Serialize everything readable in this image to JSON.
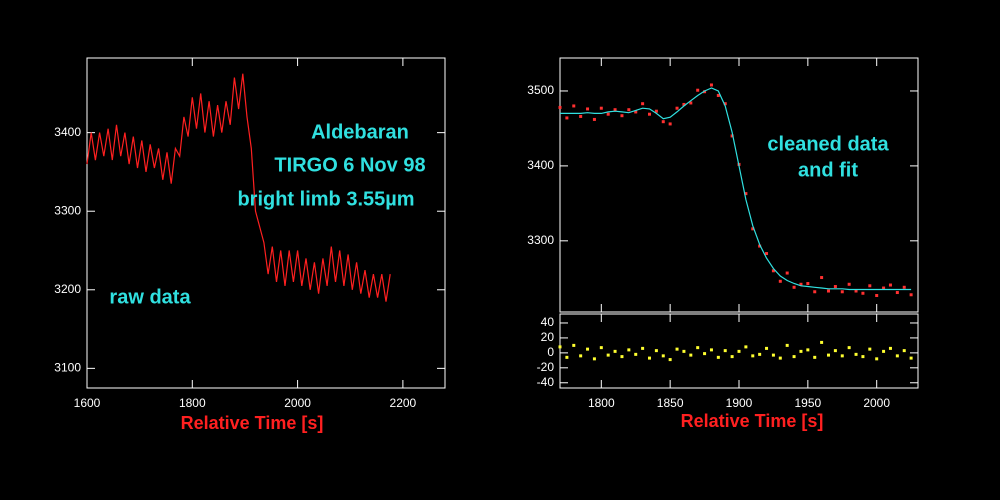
{
  "chart_data": [
    {
      "type": "line",
      "x": [
        1600,
        1608,
        1616,
        1624,
        1632,
        1640,
        1648,
        1656,
        1664,
        1672,
        1680,
        1688,
        1696,
        1704,
        1712,
        1720,
        1728,
        1736,
        1744,
        1752,
        1760,
        1768,
        1776,
        1784,
        1792,
        1800,
        1808,
        1816,
        1824,
        1832,
        1840,
        1848,
        1856,
        1864,
        1872,
        1880,
        1888,
        1896,
        1904,
        1912,
        1920,
        1928,
        1936,
        1944,
        1952,
        1960,
        1968,
        1976,
        1984,
        1992,
        2000,
        2008,
        2016,
        2024,
        2032,
        2040,
        2048,
        2056,
        2064,
        2072,
        2080,
        2088,
        2096,
        2104,
        2112,
        2120,
        2128,
        2136,
        2144,
        2152,
        2160,
        2168,
        2176
      ],
      "values": [
        3360,
        3400,
        3365,
        3400,
        3370,
        3405,
        3365,
        3410,
        3370,
        3400,
        3360,
        3395,
        3355,
        3390,
        3350,
        3385,
        3355,
        3380,
        3340,
        3375,
        3335,
        3380,
        3370,
        3420,
        3395,
        3445,
        3405,
        3450,
        3400,
        3440,
        3395,
        3435,
        3400,
        3440,
        3410,
        3470,
        3430,
        3475,
        3420,
        3380,
        3300,
        3280,
        3260,
        3220,
        3255,
        3210,
        3250,
        3205,
        3250,
        3210,
        3250,
        3205,
        3240,
        3200,
        3235,
        3195,
        3240,
        3205,
        3255,
        3210,
        3250,
        3205,
        3245,
        3200,
        3235,
        3195,
        3225,
        3190,
        3220,
        3190,
        3220,
        3185,
        3220
      ],
      "color": "#ff2020",
      "x_label": "Relative Time [s]",
      "annotations": [
        "Aldebaran",
        "TIRGO 6 Nov 98",
        "bright limb 3.55µm",
        "raw data"
      ],
      "xlim": [
        1600,
        2280
      ],
      "xticks": [
        1600,
        1800,
        2000,
        2200
      ],
      "ylim": [
        3075,
        3495
      ],
      "yticks": [
        3100,
        3200,
        3300,
        3400
      ]
    },
    {
      "type": "scatter",
      "x": [
        1770,
        1775,
        1780,
        1785,
        1790,
        1795,
        1800,
        1805,
        1810,
        1815,
        1820,
        1825,
        1830,
        1835,
        1840,
        1845,
        1850,
        1855,
        1860,
        1865,
        1870,
        1875,
        1880,
        1885,
        1890,
        1895,
        1900,
        1905,
        1910,
        1915,
        1920,
        1925,
        1930,
        1935,
        1940,
        1945,
        1950,
        1955,
        1960,
        1965,
        1970,
        1975,
        1980,
        1985,
        1990,
        1995,
        2000,
        2005,
        2010,
        2015,
        2020,
        2025
      ],
      "series": [
        {
          "color": "#ff3030",
          "values": [
            3478,
            3464,
            3480,
            3466,
            3476,
            3462,
            3477,
            3469,
            3475,
            3467,
            3475,
            3472,
            3483,
            3469,
            3473,
            3459,
            3456,
            3477,
            3482,
            3484,
            3501,
            3499,
            3508,
            3494,
            3483,
            3440,
            3402,
            3363,
            3316,
            3293,
            3283,
            3260,
            3246,
            3257,
            3238,
            3242,
            3243,
            3232,
            3251,
            3233,
            3239,
            3232,
            3242,
            3233,
            3230,
            3240,
            3227,
            3237,
            3241,
            3231,
            3238,
            3228
          ]
        },
        {
          "color": "#30e0e0",
          "line": true,
          "values": [
            3470,
            3470,
            3470,
            3470,
            3471,
            3470,
            3470,
            3472,
            3473,
            3472,
            3471,
            3474,
            3477,
            3476,
            3470,
            3463,
            3465,
            3472,
            3480,
            3487,
            3494,
            3500,
            3504,
            3500,
            3480,
            3445,
            3400,
            3355,
            3320,
            3295,
            3277,
            3263,
            3253,
            3247,
            3243,
            3240,
            3239,
            3238,
            3237,
            3236,
            3236,
            3236,
            3235,
            3235,
            3235,
            3235,
            3235,
            3235,
            3235,
            3235,
            3235,
            3235
          ]
        }
      ],
      "annotations": [
        "cleaned data",
        "and fit"
      ],
      "xlim": [
        1770,
        2030
      ],
      "xticks": [
        1800,
        1850,
        1900,
        1950,
        2000
      ],
      "ylim": [
        3205,
        3544
      ],
      "yticks": [
        3300,
        3400,
        3500
      ]
    },
    {
      "type": "scatter",
      "x": [
        1770,
        1775,
        1780,
        1785,
        1790,
        1795,
        1800,
        1805,
        1810,
        1815,
        1820,
        1825,
        1830,
        1835,
        1840,
        1845,
        1850,
        1855,
        1860,
        1865,
        1870,
        1875,
        1880,
        1885,
        1890,
        1895,
        1900,
        1905,
        1910,
        1915,
        1920,
        1925,
        1930,
        1935,
        1940,
        1945,
        1950,
        1955,
        1960,
        1965,
        1970,
        1975,
        1980,
        1985,
        1990,
        1995,
        2000,
        2005,
        2010,
        2015,
        2020,
        2025
      ],
      "series": [
        {
          "color": "#ffff30",
          "values": [
            8,
            -6,
            10,
            -4,
            5,
            -8,
            7,
            -3,
            2,
            -5,
            4,
            -2,
            6,
            -7,
            3,
            -4,
            -9,
            5,
            2,
            -3,
            7,
            -1,
            4,
            -6,
            3,
            -5,
            2,
            8,
            -4,
            -2,
            6,
            -3,
            -7,
            10,
            -5,
            2,
            4,
            -6,
            14,
            -3,
            3,
            -4,
            7,
            -2,
            -5,
            5,
            -8,
            2,
            6,
            -4,
            3,
            -7
          ]
        }
      ],
      "x_label": "Relative Time [s]",
      "xlim": [
        1770,
        2030
      ],
      "xticks": [
        1800,
        1850,
        1900,
        1950,
        2000
      ],
      "ylim": [
        -47,
        52
      ],
      "yticks": [
        -40,
        -20,
        0,
        20,
        40
      ]
    }
  ]
}
